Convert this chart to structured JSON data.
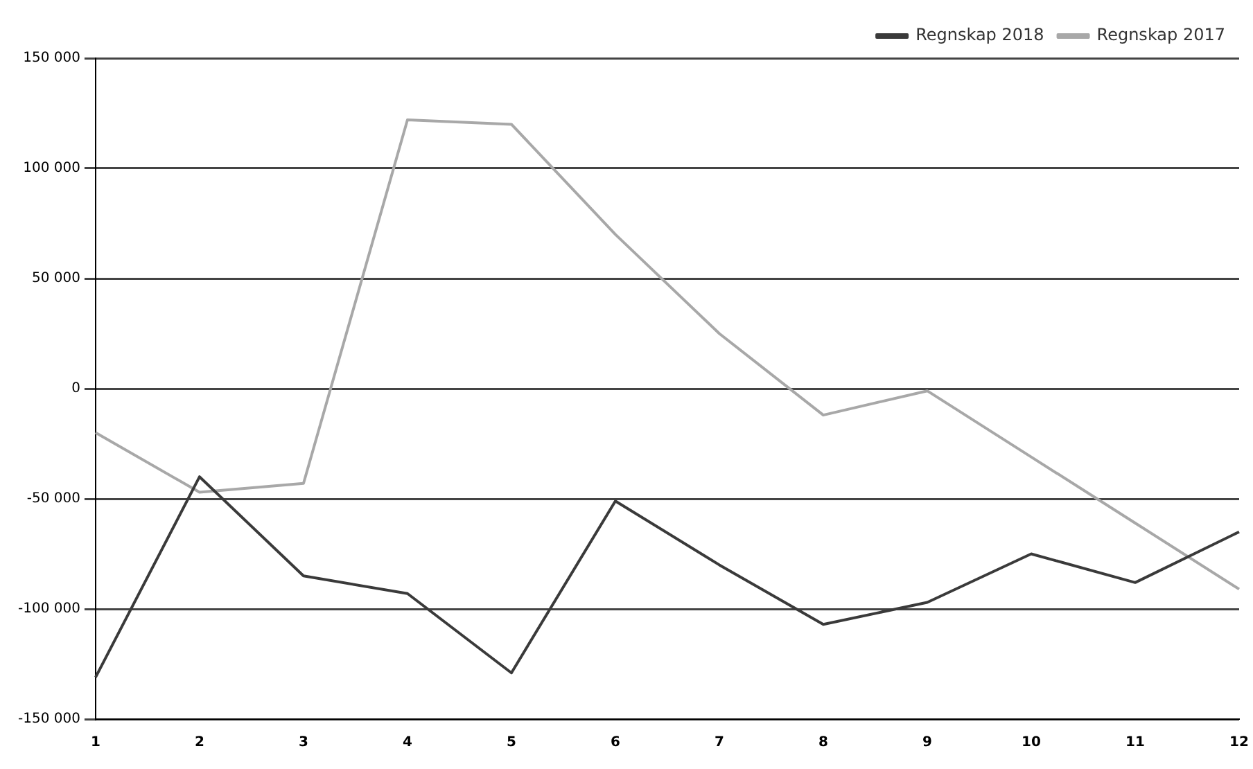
{
  "chart_data": {
    "type": "line",
    "categories": [
      "1",
      "2",
      "3",
      "4",
      "5",
      "6",
      "7",
      "8",
      "9",
      "10",
      "11",
      "12"
    ],
    "series": [
      {
        "name": "Regnskap 2018",
        "color": "#3a3a3a",
        "values": [
          -131000,
          -40000,
          -85000,
          -93000,
          -129000,
          -51000,
          -80000,
          -107000,
          -97000,
          -75000,
          -88000,
          -65000
        ]
      },
      {
        "name": "Regnskap 2017",
        "color": "#a8a8a8",
        "values": [
          -20000,
          -47000,
          -43000,
          122000,
          120000,
          70000,
          25000,
          -12000,
          -1000,
          -31000,
          -61000,
          -91000
        ]
      }
    ],
    "ylim": [
      -150000,
      150000
    ],
    "yticks": [
      {
        "value": -150000,
        "label": "-150 000"
      },
      {
        "value": -100000,
        "label": "-100 000"
      },
      {
        "value": -50000,
        "label": "-50 000"
      },
      0,
      {
        "value": 50000,
        "label": "50 000"
      },
      {
        "value": 100000,
        "label": "100 000"
      },
      {
        "value": 150000,
        "label": "150 000"
      }
    ],
    "grid": "y",
    "legend": "top right",
    "marker": "none",
    "line_style": "solid"
  }
}
